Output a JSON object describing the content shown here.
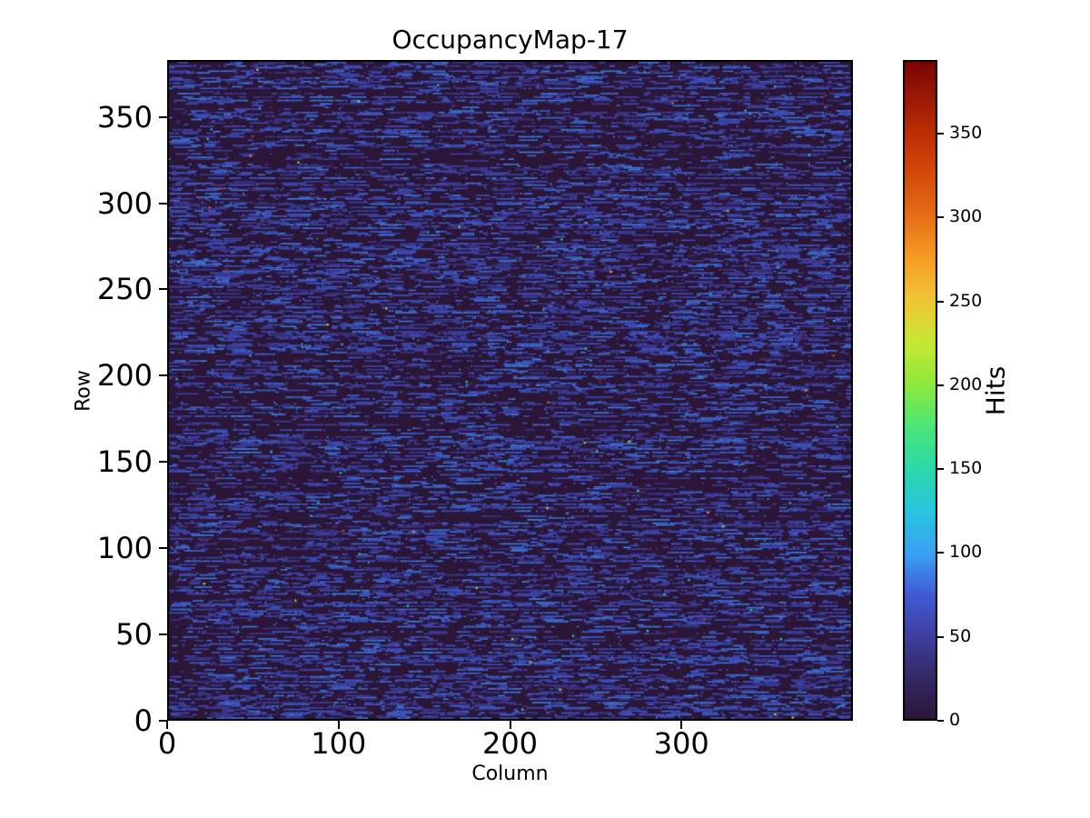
{
  "chart_data": {
    "type": "heatmap",
    "title": "OccupancyMap-17",
    "xlabel": "Column",
    "ylabel": "Row",
    "colorbar_label": "Hits",
    "xlim": [
      0,
      400
    ],
    "ylim": [
      0,
      383
    ],
    "x_ticks": [
      0,
      100,
      200,
      300
    ],
    "y_ticks": [
      0,
      50,
      100,
      150,
      200,
      250,
      300,
      350
    ],
    "colorbar_ticks": [
      0,
      50,
      100,
      150,
      200,
      250,
      300,
      350
    ],
    "vmin": 0,
    "vmax": 394,
    "colormap": "turbo",
    "grid": false,
    "legend": "none",
    "plot_background": "#2b1638",
    "figure_background": "#ffffff",
    "text_color": "#000000",
    "colormap_stops": [
      {
        "v": 0,
        "c": "#2b1638"
      },
      {
        "v": 25,
        "c": "#342864"
      },
      {
        "v": 50,
        "c": "#3e3f9e"
      },
      {
        "v": 75,
        "c": "#405ad6"
      },
      {
        "v": 100,
        "c": "#3aa2f3"
      },
      {
        "v": 125,
        "c": "#28c5de"
      },
      {
        "v": 150,
        "c": "#2cd8ac"
      },
      {
        "v": 175,
        "c": "#4ae778"
      },
      {
        "v": 200,
        "c": "#8ce83e"
      },
      {
        "v": 225,
        "c": "#c6e832"
      },
      {
        "v": 250,
        "c": "#f0c835"
      },
      {
        "v": 275,
        "c": "#f69e26"
      },
      {
        "v": 300,
        "c": "#e87016"
      },
      {
        "v": 325,
        "c": "#d44c0a"
      },
      {
        "v": 350,
        "c": "#bc2f06"
      },
      {
        "v": 375,
        "c": "#961605"
      },
      {
        "v": 394,
        "c": "#7a0403"
      }
    ],
    "description": "Sparse pixel-detector occupancy map: nearly every row shows short horizontal streaks of low hit counts (~30-95 hits, rendered blue) on a near-zero dark purple background, with scattered isolated hot pixels (cyan, green, yellow, orange, red) reaching up to ~394 hits.",
    "texture": {
      "seed": 17,
      "rows": 383,
      "cols": 400,
      "dense_row_fraction": 0.7,
      "dense_start_prob": [
        0.05,
        0.25
      ],
      "sparse_start_prob": [
        0.008,
        0.053
      ],
      "max_run_length": 16,
      "streak_hits_range": [
        30,
        95
      ],
      "hot_pixel_count": 90,
      "hot_hits_tiers": [
        {
          "fraction": 0.55,
          "range": [
            95,
            160
          ]
        },
        {
          "fraction": 0.3,
          "range": [
            160,
            280
          ]
        },
        {
          "fraction": 0.15,
          "range": [
            280,
            394
          ]
        }
      ]
    }
  }
}
